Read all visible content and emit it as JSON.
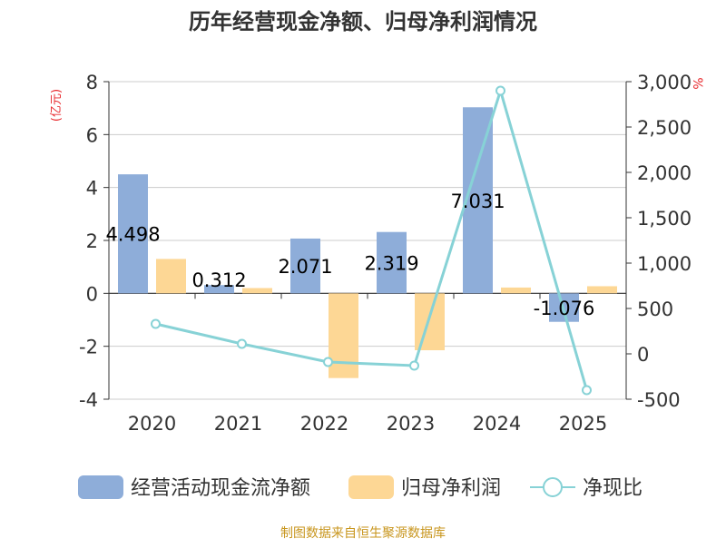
{
  "chart_data": {
    "type": "bar",
    "title": "历年经营现金净额、归母净利润情况",
    "categories": [
      "2020",
      "2021",
      "2022",
      "2023",
      "2024",
      "2025"
    ],
    "series": [
      {
        "name": "经营活动现金流净额",
        "kind": "bar",
        "axis": "left",
        "color": "#8eadd9",
        "values": [
          4.498,
          0.312,
          2.071,
          2.319,
          7.031,
          -1.076
        ],
        "labels": [
          "4.498",
          "0.312",
          "2.071",
          "2.319",
          "7.031",
          "-1.076"
        ]
      },
      {
        "name": "归母净利润",
        "kind": "bar",
        "axis": "left",
        "color": "#fdd795",
        "values": [
          1.3,
          0.2,
          -3.2,
          -2.15,
          0.22,
          0.27
        ]
      },
      {
        "name": "净现比",
        "kind": "line",
        "axis": "right",
        "color": "#87d2d6",
        "values": [
          330,
          110,
          -90,
          -130,
          2900,
          -400
        ]
      }
    ],
    "y_left": {
      "label": "(亿元)",
      "min": -4,
      "max": 8,
      "ticks": [
        "-4",
        "-2",
        "0",
        "2",
        "4",
        "6",
        "8"
      ]
    },
    "y_right": {
      "label": "%",
      "min": -500,
      "max": 3000,
      "ticks": [
        "-500",
        "0",
        "500",
        "1,000",
        "1,500",
        "2,000",
        "2,500",
        "3,000"
      ]
    },
    "legend_position": "bottom",
    "source": "制图数据来自恒生聚源数据库"
  }
}
